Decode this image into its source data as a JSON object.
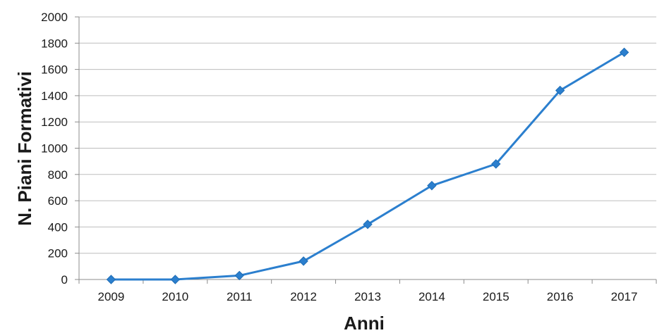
{
  "chart_data": {
    "type": "line",
    "title": "",
    "xlabel": "Anni",
    "ylabel": "N. Piani Formativi",
    "x": [
      "2009",
      "2010",
      "2011",
      "2012",
      "2013",
      "2014",
      "2015",
      "2016",
      "2017"
    ],
    "series": [
      {
        "values": [
          0,
          0,
          30,
          140,
          420,
          715,
          880,
          1440,
          1730
        ]
      }
    ],
    "yticks": [
      "0",
      "200",
      "400",
      "600",
      "800",
      "1000",
      "1200",
      "1400",
      "1600",
      "1800",
      "2000"
    ],
    "ylim": [
      0,
      2000
    ],
    "grid": true,
    "legend": "none",
    "colors": {
      "series": "#2b7fce",
      "grid": "#bdbdbd",
      "axis": "#8c8c8c"
    }
  }
}
